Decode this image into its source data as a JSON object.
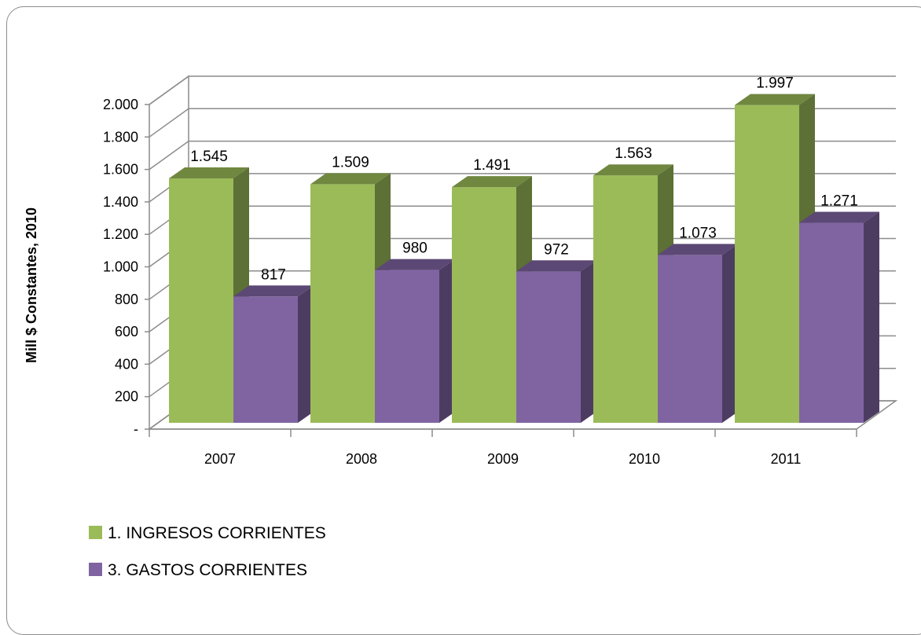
{
  "chart_data": {
    "type": "bar",
    "title": "",
    "xlabel": "",
    "ylabel": "Mill $ Constantes, 2010",
    "categories": [
      "2007",
      "2008",
      "2009",
      "2010",
      "2011"
    ],
    "series": [
      {
        "name": "1.  INGRESOS CORRIENTES",
        "values": [
          1545,
          1509,
          1491,
          1563,
          1997
        ],
        "labels": [
          "1.545",
          "1.509",
          "1.491",
          "1.563",
          "1.997"
        ],
        "color": "#9bbb59"
      },
      {
        "name": "3.  GASTOS CORRIENTES",
        "values": [
          817,
          980,
          972,
          1073,
          1271
        ],
        "labels": [
          "817",
          "980",
          "972",
          "1.073",
          "1.271"
        ],
        "color": "#8064a2"
      }
    ],
    "y_ticks": [
      0,
      200,
      400,
      600,
      800,
      1000,
      1200,
      1400,
      1600,
      1800,
      2000
    ],
    "y_tick_labels": [
      "-",
      "200",
      "400",
      "600",
      "800",
      "1.000",
      "1.200",
      "1.400",
      "1.600",
      "1.800",
      "2.000"
    ],
    "ylim": [
      0,
      2000
    ],
    "grid": true,
    "legend_position": "bottom-left",
    "style": "3d-clustered-column"
  }
}
